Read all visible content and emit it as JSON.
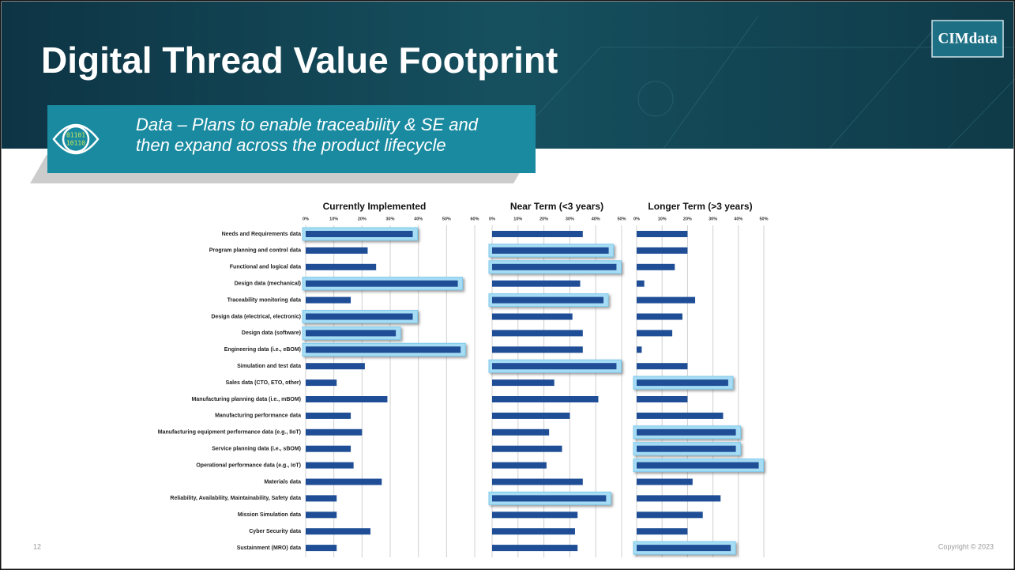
{
  "slide": {
    "title": "Digital Thread Value Footprint",
    "callout": [
      "Data – Plans to enable traceability & SE and",
      "then expand across the product lifecycle"
    ],
    "logo": "CIMdata",
    "page_number": "12",
    "copyright": "Copyright © 2023"
  },
  "chart_data": [
    {
      "type": "bar",
      "orientation": "horizontal",
      "title": "Currently Implemented",
      "color": "#1f4e96",
      "grid": true,
      "categories": [
        "Needs and Requirements data",
        "Program planning and control data",
        "Functional and logical data",
        "Design data (mechanical)",
        "Traceability monitoring data",
        "Design data (electrical, electronic)",
        "Design data (software)",
        "Engineering data (i.e., eBOM)",
        "Simulation and test data",
        "Sales data (CTO, ETO, other)",
        "Manufacturing planning data (i.e., mBOM)",
        "Manufacturing performance data",
        "Manufacturing equipment performance data (e.g., IIoT)",
        "Service planning data (i.e., sBOM)",
        "Operational performance data (e.g., IoT)",
        "Materials data",
        "Reliability, Availability, Maintainability, Safety data",
        "Mission Simulation data",
        "Cyber Security data",
        "Sustainment (MRO) data"
      ],
      "values": [
        38,
        22,
        25,
        54,
        16,
        38,
        32,
        55,
        21,
        11,
        29,
        16,
        20,
        16,
        17,
        27,
        11,
        11,
        23,
        11
      ],
      "highlight": [
        true,
        false,
        false,
        true,
        false,
        true,
        true,
        true,
        false,
        false,
        false,
        false,
        false,
        false,
        false,
        false,
        false,
        false,
        false,
        false
      ],
      "xlim": [
        0,
        60
      ],
      "xticks": [
        {
          "value": 0,
          "label": "0%"
        },
        {
          "value": 10,
          "label": "10%"
        },
        {
          "value": 20,
          "label": "20%"
        },
        {
          "value": 30,
          "label": "30%"
        },
        {
          "value": 40,
          "label": "40%"
        },
        {
          "value": 50,
          "label": "50%"
        },
        {
          "value": 60,
          "label": "60%"
        }
      ]
    },
    {
      "type": "bar",
      "orientation": "horizontal",
      "title": "Near Term (<3 years)",
      "color": "#1f4e96",
      "grid": true,
      "values": [
        35,
        45,
        48,
        34,
        43,
        31,
        35,
        35,
        48,
        24,
        41,
        30,
        22,
        27,
        21,
        35,
        44,
        33,
        32,
        33
      ],
      "highlight": [
        false,
        true,
        true,
        false,
        true,
        false,
        false,
        false,
        true,
        false,
        false,
        false,
        false,
        false,
        false,
        false,
        true,
        false,
        false,
        false
      ],
      "xlim": [
        0,
        50
      ],
      "xticks": [
        {
          "value": 0,
          "label": "0%"
        },
        {
          "value": 10,
          "label": "10%"
        },
        {
          "value": 20,
          "label": "20%"
        },
        {
          "value": 30,
          "label": "30%"
        },
        {
          "value": 40,
          "label": "40%"
        },
        {
          "value": 50,
          "label": "50%"
        }
      ]
    },
    {
      "type": "bar",
      "orientation": "horizontal",
      "title": "Longer Term (>3 years)",
      "color": "#1f4e96",
      "grid": true,
      "values": [
        20,
        20,
        15,
        3,
        23,
        18,
        14,
        2,
        20,
        36,
        20,
        34,
        39,
        39,
        48,
        22,
        33,
        26,
        20,
        37
      ],
      "highlight": [
        false,
        false,
        false,
        false,
        false,
        false,
        false,
        false,
        false,
        true,
        false,
        false,
        true,
        true,
        true,
        false,
        false,
        false,
        false,
        true
      ],
      "xlim": [
        0,
        50
      ],
      "xticks": [
        {
          "value": 0,
          "label": "0%"
        },
        {
          "value": 10,
          "label": "10%"
        },
        {
          "value": 20,
          "label": "20%"
        },
        {
          "value": 30,
          "label": "30%"
        },
        {
          "value": 40,
          "label": "40%"
        },
        {
          "value": 50,
          "label": "50%"
        }
      ]
    }
  ]
}
